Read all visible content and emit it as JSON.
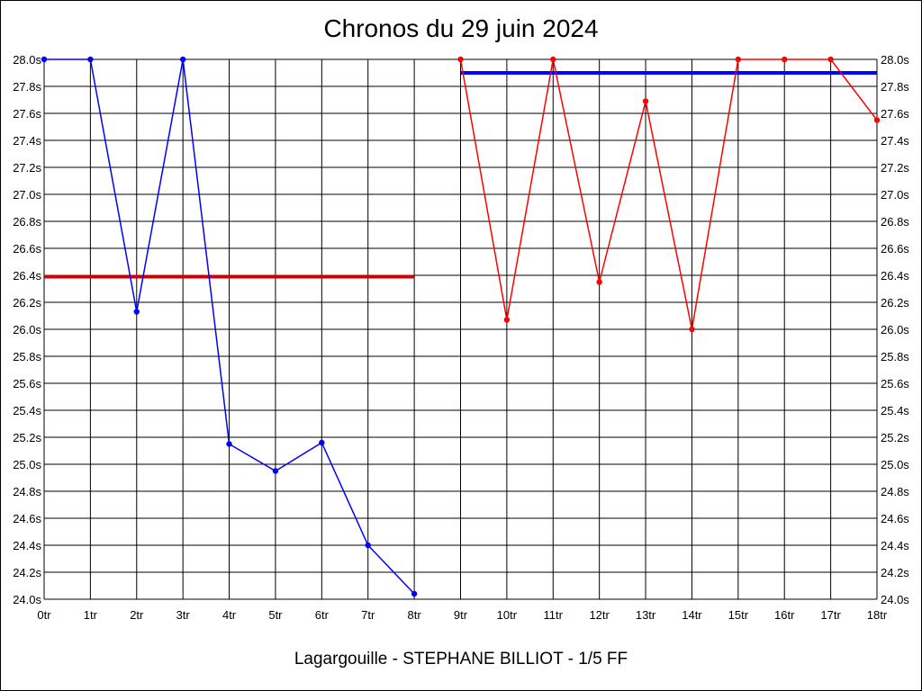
{
  "chart_data": {
    "type": "line",
    "title": "Chronos du 29 juin 2024",
    "subtitle": "Lagargouille - STEPHANE BILLIOT - 1/5 FF",
    "ylim": [
      24.0,
      28.0
    ],
    "y_ticks": [
      "24.0s",
      "24.2s",
      "24.4s",
      "24.6s",
      "24.8s",
      "25.0s",
      "25.2s",
      "25.4s",
      "25.6s",
      "25.8s",
      "26.0s",
      "26.2s",
      "26.4s",
      "26.6s",
      "26.8s",
      "27.0s",
      "27.2s",
      "27.4s",
      "27.6s",
      "27.8s",
      "28.0s"
    ],
    "x_ticks": [
      "0tr",
      "1tr",
      "2tr",
      "3tr",
      "4tr",
      "5tr",
      "6tr",
      "7tr",
      "8tr",
      "9tr",
      "10tr",
      "11tr",
      "12tr",
      "13tr",
      "14tr",
      "15tr",
      "16tr",
      "17tr",
      "18tr"
    ],
    "grid": true,
    "series": [
      {
        "color": "#0000ff",
        "x": [
          0,
          1,
          2,
          3,
          4,
          5,
          6,
          7,
          8
        ],
        "y": [
          28.0,
          28.0,
          26.13,
          28.0,
          25.15,
          24.95,
          25.16,
          24.4,
          24.04
        ]
      },
      {
        "color": "#ff0000",
        "x": [
          9,
          10,
          11,
          12,
          13,
          14,
          15,
          16,
          17,
          18
        ],
        "y": [
          28.0,
          26.07,
          28.0,
          26.35,
          27.69,
          26.0,
          28.0,
          28.0,
          28.0,
          27.55
        ]
      }
    ],
    "reference_lines": [
      {
        "color": "#cc0000",
        "y": 26.39,
        "x_from": 0,
        "x_to": 8
      },
      {
        "color": "#0000ff",
        "y": 27.9,
        "x_from": 9,
        "x_to": 18
      }
    ]
  }
}
